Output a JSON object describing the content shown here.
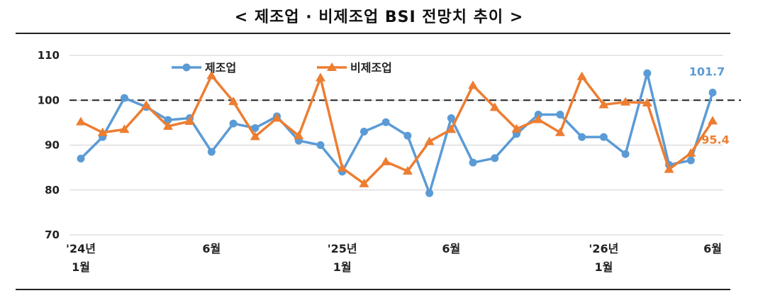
{
  "title": "< 제조업 · 비제조업 BSI 전망치 추이 >",
  "chart_data": {
    "type": "line",
    "y_ticks": [
      70,
      80,
      90,
      100,
      110
    ],
    "ylim": [
      70,
      110
    ],
    "reference_line": 100,
    "x_tick_labels": [
      {
        "index": 0,
        "line1": "'24년",
        "line2": "1월"
      },
      {
        "index": 6,
        "line1": "6월",
        "line2": ""
      },
      {
        "index": 12,
        "line1": "'25년",
        "line2": "1월"
      },
      {
        "index": 17,
        "line1": "6월",
        "line2": ""
      },
      {
        "index": 24,
        "line1": "'26년",
        "line2": "1월"
      },
      {
        "index": 29,
        "line1": "6월",
        "line2": ""
      }
    ],
    "legend_placement": "top",
    "series": [
      {
        "name": "제조업",
        "color": "#5b9bd5",
        "marker": "circle",
        "values": [
          87.0,
          91.8,
          100.5,
          98.5,
          95.6,
          96.0,
          88.5,
          94.8,
          93.8,
          96.4,
          91.0,
          90.0,
          84.1,
          93.0,
          95.1,
          92.1,
          79.3,
          96.0,
          86.1,
          87.1,
          92.5,
          96.8,
          96.8,
          91.8,
          91.8,
          88.0,
          106.0,
          85.6,
          86.6,
          101.7
        ],
        "end_label": "101.7"
      },
      {
        "name": "비제조업",
        "color": "#ed7d31",
        "marker": "triangle",
        "values": [
          95.2,
          92.8,
          93.5,
          98.9,
          94.2,
          95.3,
          105.5,
          99.7,
          91.9,
          96.0,
          92.1,
          105.0,
          84.9,
          81.4,
          86.3,
          84.2,
          90.8,
          93.5,
          103.3,
          98.4,
          93.6,
          95.7,
          92.8,
          105.3,
          99.0,
          99.6,
          99.4,
          84.6,
          88.2,
          95.4
        ],
        "end_label": "95.4"
      }
    ]
  }
}
